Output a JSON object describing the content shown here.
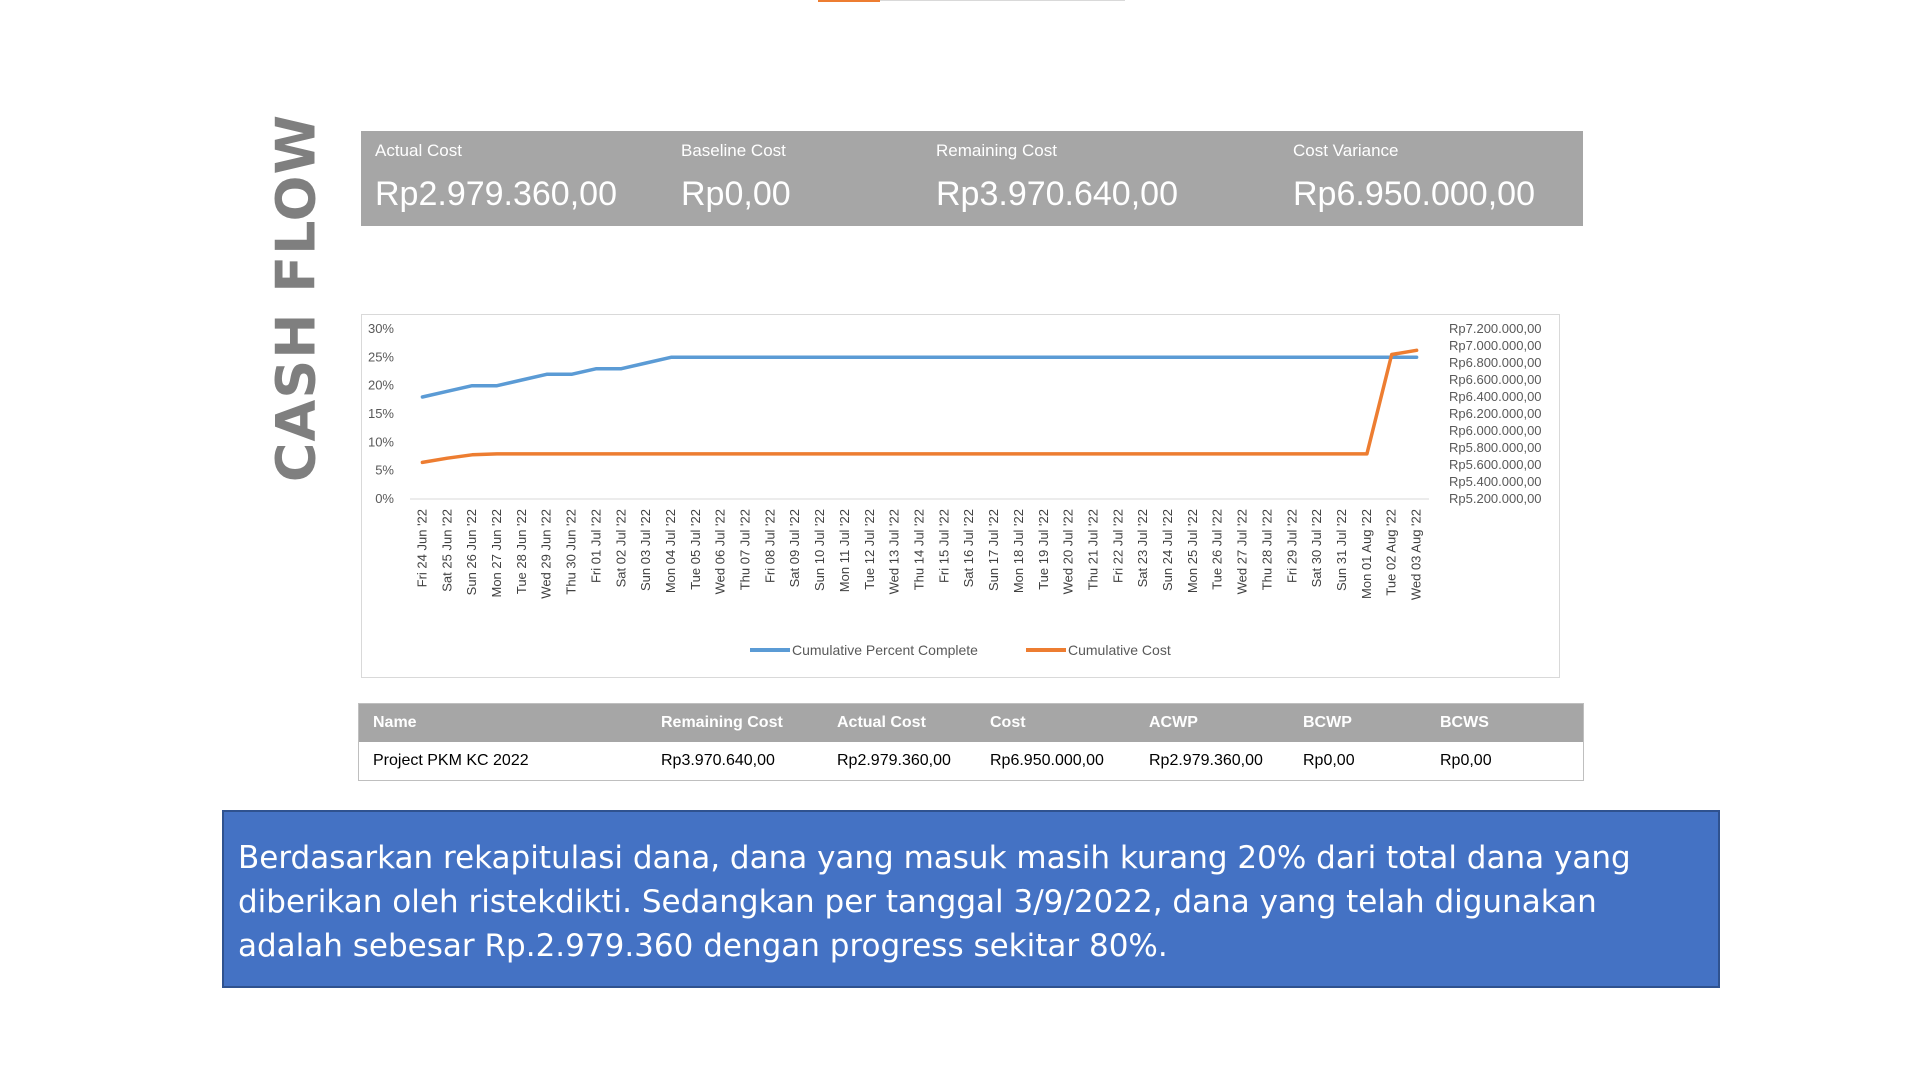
{
  "page_title": "CASH FLOW",
  "kpis": [
    {
      "label": "Actual Cost",
      "value": "Rp2.979.360,00"
    },
    {
      "label": "Baseline Cost",
      "value": "Rp0,00"
    },
    {
      "label": "Remaining Cost",
      "value": "Rp3.970.640,00"
    },
    {
      "label": "Cost Variance",
      "value": "Rp6.950.000,00"
    }
  ],
  "chart_data": {
    "type": "line",
    "x": [
      "Fri 24 Jun '22",
      "Sat 25 Jun '22",
      "Sun 26 Jun '22",
      "Mon 27 Jun '22",
      "Tue 28 Jun '22",
      "Wed 29 Jun '22",
      "Thu 30 Jun '22",
      "Fri 01 Jul '22",
      "Sat 02 Jul '22",
      "Sun 03 Jul '22",
      "Mon 04 Jul '22",
      "Tue 05 Jul '22",
      "Wed 06 Jul '22",
      "Thu 07 Jul '22",
      "Fri 08 Jul '22",
      "Sat 09 Jul '22",
      "Sun 10 Jul '22",
      "Mon 11 Jul '22",
      "Tue 12 Jul '22",
      "Wed 13 Jul '22",
      "Thu 14 Jul '22",
      "Fri 15 Jul '22",
      "Sat 16 Jul '22",
      "Sun 17 Jul '22",
      "Mon 18 Jul '22",
      "Tue 19 Jul '22",
      "Wed 20 Jul '22",
      "Thu 21 Jul '22",
      "Fri 22 Jul '22",
      "Sat 23 Jul '22",
      "Sun 24 Jul '22",
      "Mon 25 Jul '22",
      "Tue 26 Jul '22",
      "Wed 27 Jul '22",
      "Thu 28 Jul '22",
      "Fri 29 Jul '22",
      "Sat 30 Jul '22",
      "Sun 31 Jul '22",
      "Mon 01 Aug '22",
      "Tue 02 Aug '22",
      "Wed 03 Aug '22"
    ],
    "series": [
      {
        "name": "Cumulative Percent Complete",
        "axis": "left",
        "color": "#5b9bd5",
        "values": [
          18,
          19,
          20,
          20,
          21,
          22,
          22,
          23,
          23,
          24,
          25,
          25,
          25,
          25,
          25,
          25,
          25,
          25,
          25,
          25,
          25,
          25,
          25,
          25,
          25,
          25,
          25,
          25,
          25,
          25,
          25,
          25,
          25,
          25,
          25,
          25,
          25,
          25,
          25,
          25,
          25
        ]
      },
      {
        "name": "Cumulative Cost",
        "axis": "right",
        "color": "#ed7d31",
        "values": [
          5630000,
          5680000,
          5720000,
          5730000,
          5730000,
          5730000,
          5730000,
          5730000,
          5730000,
          5730000,
          5730000,
          5730000,
          5730000,
          5730000,
          5730000,
          5730000,
          5730000,
          5730000,
          5730000,
          5730000,
          5730000,
          5730000,
          5730000,
          5730000,
          5730000,
          5730000,
          5730000,
          5730000,
          5730000,
          5730000,
          5730000,
          5730000,
          5730000,
          5730000,
          5730000,
          5730000,
          5730000,
          5730000,
          5730000,
          6900000,
          6950000
        ]
      }
    ],
    "y_left": {
      "min": 0,
      "max": 30,
      "ticks": [
        "0%",
        "5%",
        "10%",
        "15%",
        "20%",
        "25%",
        "30%"
      ]
    },
    "y_right": {
      "min": 5200000,
      "max": 7200000,
      "ticks": [
        "Rp5.200.000,00",
        "Rp5.400.000,00",
        "Rp5.600.000,00",
        "Rp5.800.000,00",
        "Rp6.000.000,00",
        "Rp6.200.000,00",
        "Rp6.400.000,00",
        "Rp6.600.000,00",
        "Rp6.800.000,00",
        "Rp7.000.000,00",
        "Rp7.200.000,00"
      ]
    },
    "legend_position": "bottom",
    "grid": false
  },
  "table": {
    "headers": [
      "Name",
      "Remaining Cost",
      "Actual Cost",
      "Cost",
      "ACWP",
      "BCWP",
      "BCWS"
    ],
    "rows": [
      [
        "Project PKM KC 2022",
        "Rp3.970.640,00",
        "Rp2.979.360,00",
        "Rp6.950.000,00",
        "Rp2.979.360,00",
        "Rp0,00",
        "Rp0,00"
      ]
    ]
  },
  "note": "Berdasarkan rekapitulasi dana, dana yang masuk masih kurang 20% dari total dana yang diberikan oleh ristekdikti. Sedangkan per tanggal 3/9/2022, dana yang telah digunakan adalah sebesar Rp.2.979.360 dengan progress sekitar 80%."
}
